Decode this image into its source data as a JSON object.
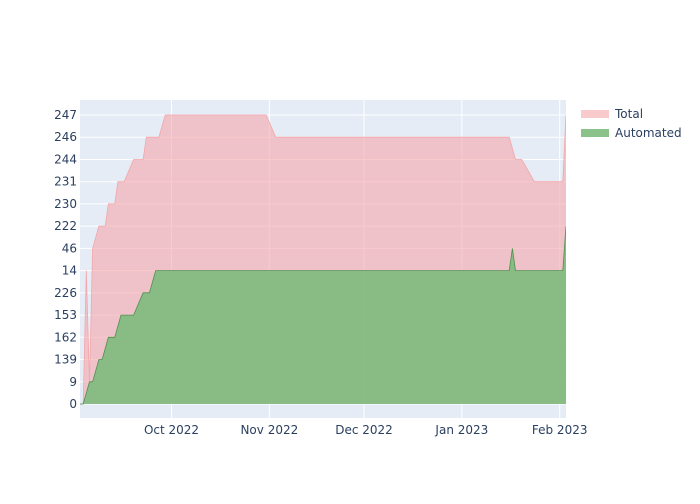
{
  "chart_data": {
    "type": "area",
    "grid": true,
    "legend_position": "top-right",
    "colors": {
      "plot_background": "#e5ecf6",
      "grid": "#ffffff",
      "total_fill": "#f4a6aa",
      "automated_fill": "#7dbb7d",
      "automated_line": "#4f8f4f",
      "tick_text": "#2a3f5f"
    },
    "x_ticks": [
      {
        "label": "Oct 2022",
        "date": "2022-10-01"
      },
      {
        "label": "Nov 2022",
        "date": "2022-11-01"
      },
      {
        "label": "Dec 2022",
        "date": "2022-12-01"
      },
      {
        "label": "Jan 2023",
        "date": "2023-01-01"
      },
      {
        "label": "Feb 2023",
        "date": "2023-02-01"
      }
    ],
    "x_range": [
      "2022-09-02",
      "2023-02-03"
    ],
    "y_categories": [
      "0",
      "9",
      "139",
      "162",
      "153",
      "226",
      "14",
      "46",
      "222",
      "230",
      "231",
      "244",
      "246",
      "247"
    ],
    "series": [
      {
        "name": "Total",
        "color": "#f4a6aa",
        "points": [
          [
            "2022-09-02",
            "0"
          ],
          [
            "2022-09-03",
            "0"
          ],
          [
            "2022-09-04",
            "14"
          ],
          [
            "2022-09-05",
            "9"
          ],
          [
            "2022-09-06",
            "46"
          ],
          [
            "2022-09-08",
            "222"
          ],
          [
            "2022-09-10",
            "222"
          ],
          [
            "2022-09-11",
            "230"
          ],
          [
            "2022-09-13",
            "230"
          ],
          [
            "2022-09-14",
            "231"
          ],
          [
            "2022-09-16",
            "231"
          ],
          [
            "2022-09-19",
            "244"
          ],
          [
            "2022-09-22",
            "244"
          ],
          [
            "2022-09-23",
            "246"
          ],
          [
            "2022-09-27",
            "246"
          ],
          [
            "2022-09-29",
            "247"
          ],
          [
            "2022-10-01",
            "247"
          ],
          [
            "2022-10-02",
            "247"
          ],
          [
            "2022-10-31",
            "247"
          ],
          [
            "2022-11-03",
            "246"
          ],
          [
            "2023-01-16",
            "246"
          ],
          [
            "2023-01-18",
            "244"
          ],
          [
            "2023-01-20",
            "244"
          ],
          [
            "2023-01-24",
            "231"
          ],
          [
            "2023-02-02",
            "231"
          ],
          [
            "2023-02-03",
            "247"
          ]
        ]
      },
      {
        "name": "Automated",
        "color": "#7dbb7d",
        "points": [
          [
            "2022-09-02",
            "0"
          ],
          [
            "2022-09-03",
            "0"
          ],
          [
            "2022-09-05",
            "9"
          ],
          [
            "2022-09-06",
            "9"
          ],
          [
            "2022-09-08",
            "139"
          ],
          [
            "2022-09-09",
            "139"
          ],
          [
            "2022-09-11",
            "162"
          ],
          [
            "2022-09-13",
            "162"
          ],
          [
            "2022-09-15",
            "153"
          ],
          [
            "2022-09-19",
            "153"
          ],
          [
            "2022-09-22",
            "226"
          ],
          [
            "2022-09-24",
            "226"
          ],
          [
            "2022-09-26",
            "14"
          ],
          [
            "2022-10-02",
            "14"
          ],
          [
            "2023-01-16",
            "14"
          ],
          [
            "2023-01-17",
            "46"
          ],
          [
            "2023-01-18",
            "14"
          ],
          [
            "2023-02-02",
            "14"
          ],
          [
            "2023-02-03",
            "222"
          ]
        ]
      }
    ]
  }
}
